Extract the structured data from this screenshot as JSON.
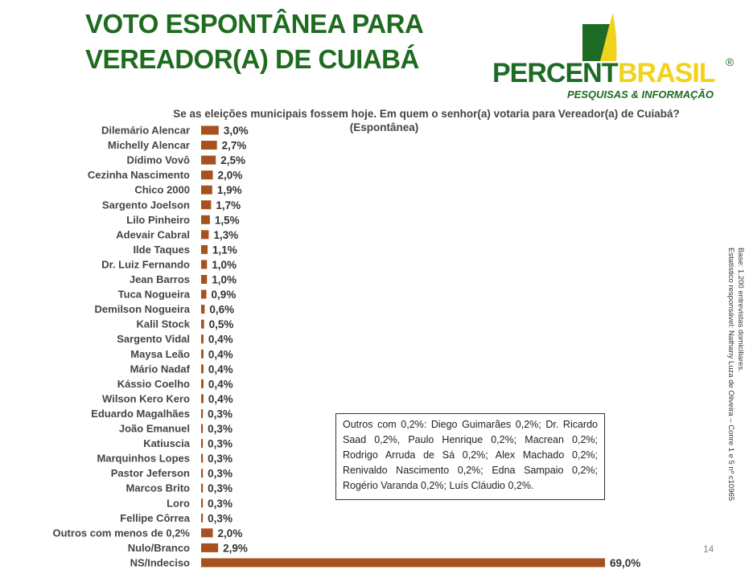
{
  "title_line1": "VOTO ESPONTÂNEA PARA",
  "title_line2": "VEREADOR(A) DE CUIABÁ",
  "logo": {
    "word1": "PERCENT",
    "word2": "BRASIL",
    "registered": "®",
    "tagline": "PESQUISAS & INFORMAÇÃO"
  },
  "question_line1": "Se as eleições municipais fossem hoje. Em quem o senhor(a) votaria para  Vereador(a) de Cuiabá?",
  "question_line2": "(Espontânea)",
  "side_note_line1": "Base: 1.200 entrevistas domiciliares.",
  "side_note_line2": "Estatístico responsável: Nathany Luza de Oliveira – Conre 1 e 5 nº c10965",
  "others_box_text": "Outros com 0,2%: Diego Guimarães 0,2%; Dr. Ricardo Saad 0,2%, Paulo Henrique 0,2%; Macrean 0,2%; Rodrigo Arruda de Sá 0,2%; Alex Machado 0,2%; Renivaldo Nascimento 0,2%; Edna Sampaio 0,2%; Rogério Varanda 0,2%; Luís Cláudio 0,2%.",
  "page_number": "14",
  "colors": {
    "bar": "#a6521f",
    "title": "#1f6b1f",
    "logo_green": "#1e6b25",
    "logo_yellow": "#f2d31b"
  },
  "chart_data": {
    "type": "bar",
    "orientation": "horizontal",
    "categories": [
      "Dilemário Alencar",
      "Michelly Alencar",
      "Dídimo Vovô",
      "Cezinha Nascimento",
      "Chico 2000",
      "Sargento Joelson",
      "Lilo Pinheiro",
      "Adevair Cabral",
      "Ilde Taques",
      "Dr. Luiz Fernando",
      "Jean Barros",
      "Tuca Nogueira",
      "Demilson Nogueira",
      "Kalil Stock",
      "Sargento Vidal",
      "Maysa Leão",
      "Mário Nadaf",
      "Kássio Coelho",
      "Wilson Kero Kero",
      "Eduardo Magalhães",
      "João Emanuel",
      "Katiuscia",
      "Marquinhos Lopes",
      "Pastor Jeferson",
      "Marcos Brito",
      "Loro",
      "Fellipe Côrrea",
      "Outros com menos de 0,2%",
      "Nulo/Branco",
      "NS/Indeciso"
    ],
    "values": [
      3.0,
      2.7,
      2.5,
      2.0,
      1.9,
      1.7,
      1.5,
      1.3,
      1.1,
      1.0,
      1.0,
      0.9,
      0.6,
      0.5,
      0.4,
      0.4,
      0.4,
      0.4,
      0.4,
      0.3,
      0.3,
      0.3,
      0.3,
      0.3,
      0.3,
      0.3,
      0.3,
      2.0,
      2.9,
      69.0
    ],
    "labels": [
      "3,0%",
      "2,7%",
      "2,5%",
      "2,0%",
      "1,9%",
      "1,7%",
      "1,5%",
      "1,3%",
      "1,1%",
      "1,0%",
      "1,0%",
      "0,9%",
      "0,6%",
      "0,5%",
      "0,4%",
      "0,4%",
      "0,4%",
      "0,4%",
      "0,4%",
      "0,3%",
      "0,3%",
      "0,3%",
      "0,3%",
      "0,3%",
      "0,3%",
      "0,3%",
      "0,3%",
      "2,0%",
      "2,9%",
      "69,0%"
    ],
    "xlim": [
      0,
      69.0
    ]
  }
}
